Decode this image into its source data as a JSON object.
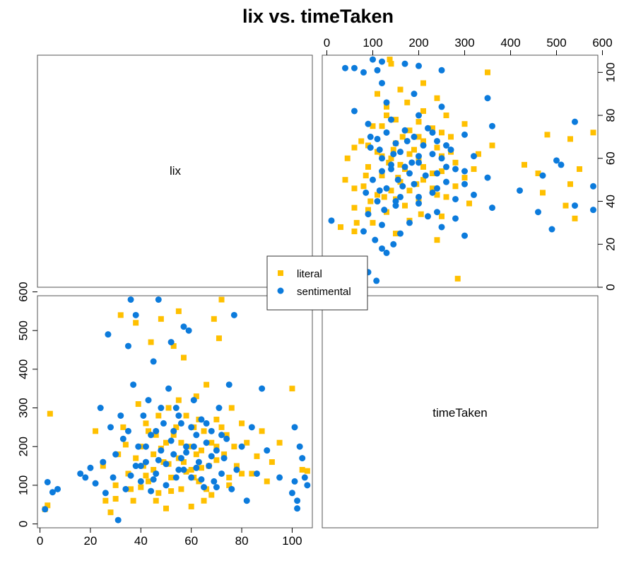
{
  "chart_data": {
    "type": "scatter",
    "title": "lix vs. timeTaken",
    "variables": [
      "lix",
      "timeTaken"
    ],
    "colors": {
      "literal": "#FFC000",
      "sentimental": "#0C7BDC"
    },
    "legend": {
      "position": "center",
      "entries": [
        {
          "name": "literal",
          "marker": "square",
          "color": "#FFC000"
        },
        {
          "name": "sentimental",
          "marker": "circle",
          "color": "#0C7BDC"
        }
      ]
    },
    "panels": [
      {
        "position": "top-left",
        "label": "lix"
      },
      {
        "position": "bottom-right",
        "label": "timeTaken"
      },
      {
        "position": "top-right",
        "x_var": "timeTaken",
        "y_var": "lix",
        "xlim": [
          -10,
          590
        ],
        "ylim": [
          0,
          108
        ],
        "x_ticks": [
          "0",
          "100",
          "200",
          "300",
          "400",
          "500",
          "600"
        ],
        "y_ticks": [
          "0",
          "20",
          "40",
          "60",
          "80",
          "100"
        ]
      },
      {
        "position": "bottom-left",
        "x_var": "lix",
        "y_var": "timeTaken",
        "xlim": [
          -1,
          108
        ],
        "ylim": [
          -10,
          590
        ],
        "x_ticks": [
          "0",
          "20",
          "40",
          "60",
          "80",
          "100"
        ],
        "y_ticks": [
          "0",
          "100",
          "200",
          "300",
          "400",
          "500",
          "600"
        ]
      }
    ],
    "series": [
      {
        "name": "literal",
        "points": [
          [
            2,
            38
          ],
          [
            3,
            48
          ],
          [
            4,
            285
          ],
          [
            22,
            240
          ],
          [
            25,
            150
          ],
          [
            26,
            60
          ],
          [
            28,
            30
          ],
          [
            30,
            100
          ],
          [
            31,
            180
          ],
          [
            32,
            540
          ],
          [
            33,
            250
          ],
          [
            35,
            130
          ],
          [
            36,
            90
          ],
          [
            37,
            60
          ],
          [
            38,
            520
          ],
          [
            39,
            310
          ],
          [
            40,
            200
          ],
          [
            41,
            150
          ],
          [
            42,
            260
          ],
          [
            43,
            110
          ],
          [
            44,
            470
          ],
          [
            45,
            180
          ],
          [
            46,
            230
          ],
          [
            47,
            80
          ],
          [
            48,
            530
          ],
          [
            49,
            160
          ],
          [
            50,
            40
          ],
          [
            50,
            210
          ],
          [
            51,
            300
          ],
          [
            52,
            120
          ],
          [
            53,
            460
          ],
          [
            54,
            250
          ],
          [
            55,
            550
          ],
          [
            55,
            170
          ],
          [
            56,
            90
          ],
          [
            57,
            430
          ],
          [
            58,
            280
          ],
          [
            59,
            200
          ],
          [
            60,
            140
          ],
          [
            61,
            250
          ],
          [
            62,
            330
          ],
          [
            63,
            110
          ],
          [
            64,
            190
          ],
          [
            65,
            240
          ],
          [
            66,
            360
          ],
          [
            67,
            150
          ],
          [
            68,
            210
          ],
          [
            69,
            530
          ],
          [
            70,
            270
          ],
          [
            71,
            480
          ],
          [
            72,
            580
          ],
          [
            73,
            180
          ],
          [
            74,
            230
          ],
          [
            75,
            120
          ],
          [
            76,
            300
          ],
          [
            77,
            200
          ],
          [
            78,
            150
          ],
          [
            80,
            260
          ],
          [
            82,
            210
          ],
          [
            84,
            130
          ],
          [
            86,
            175
          ],
          [
            88,
            240
          ],
          [
            90,
            110
          ],
          [
            92,
            160
          ],
          [
            95,
            210
          ],
          [
            100,
            350
          ],
          [
            104,
            140
          ],
          [
            106,
            137
          ],
          [
            40,
            95
          ],
          [
            45,
            140
          ],
          [
            48,
            195
          ],
          [
            52,
            85
          ],
          [
            57,
            160
          ],
          [
            61,
            120
          ],
          [
            66,
            90
          ],
          [
            70,
            165
          ],
          [
            43,
            240
          ],
          [
            46,
            60
          ],
          [
            53,
            230
          ],
          [
            58,
            135
          ],
          [
            63,
            270
          ],
          [
            38,
            170
          ],
          [
            34,
            205
          ],
          [
            60,
            45
          ],
          [
            65,
            60
          ],
          [
            72,
            250
          ],
          [
            75,
            100
          ],
          [
            80,
            130
          ],
          [
            30,
            65
          ],
          [
            55,
            320
          ],
          [
            62,
            180
          ],
          [
            68,
            75
          ],
          [
            47,
            280
          ],
          [
            51,
            155
          ],
          [
            42,
            125
          ],
          [
            56,
            210
          ],
          [
            64,
            145
          ],
          [
            70,
            200
          ]
        ]
      },
      {
        "name": "sentimental",
        "points": [
          [
            2,
            38
          ],
          [
            3,
            108
          ],
          [
            5,
            82
          ],
          [
            7,
            90
          ],
          [
            16,
            130
          ],
          [
            18,
            120
          ],
          [
            20,
            145
          ],
          [
            22,
            105
          ],
          [
            24,
            300
          ],
          [
            25,
            160
          ],
          [
            26,
            80
          ],
          [
            27,
            490
          ],
          [
            28,
            250
          ],
          [
            29,
            120
          ],
          [
            30,
            180
          ],
          [
            31,
            10
          ],
          [
            32,
            280
          ],
          [
            33,
            220
          ],
          [
            34,
            90
          ],
          [
            35,
            240
          ],
          [
            35,
            460
          ],
          [
            36,
            580
          ],
          [
            37,
            360
          ],
          [
            38,
            150
          ],
          [
            38,
            540
          ],
          [
            39,
            200
          ],
          [
            40,
            110
          ],
          [
            41,
            280
          ],
          [
            42,
            160
          ],
          [
            43,
            320
          ],
          [
            44,
            230
          ],
          [
            45,
            420
          ],
          [
            46,
            130
          ],
          [
            47,
            580
          ],
          [
            48,
            190
          ],
          [
            49,
            260
          ],
          [
            50,
            100
          ],
          [
            51,
            350
          ],
          [
            52,
            470
          ],
          [
            53,
            180
          ],
          [
            54,
            300
          ],
          [
            55,
            140
          ],
          [
            56,
            260
          ],
          [
            57,
            510
          ],
          [
            58,
            200
          ],
          [
            59,
            500
          ],
          [
            60,
            120
          ],
          [
            61,
            320
          ],
          [
            62,
            230
          ],
          [
            63,
            160
          ],
          [
            64,
            270
          ],
          [
            65,
            95
          ],
          [
            66,
            210
          ],
          [
            67,
            150
          ],
          [
            68,
            240
          ],
          [
            69,
            110
          ],
          [
            70,
            190
          ],
          [
            71,
            300
          ],
          [
            72,
            130
          ],
          [
            73,
            170
          ],
          [
            74,
            220
          ],
          [
            75,
            360
          ],
          [
            76,
            90
          ],
          [
            77,
            540
          ],
          [
            78,
            140
          ],
          [
            80,
            200
          ],
          [
            82,
            60
          ],
          [
            84,
            250
          ],
          [
            86,
            130
          ],
          [
            88,
            350
          ],
          [
            90,
            190
          ],
          [
            95,
            120
          ],
          [
            100,
            80
          ],
          [
            101,
            110
          ],
          [
            101,
            250
          ],
          [
            102,
            40
          ],
          [
            102,
            60
          ],
          [
            103,
            200
          ],
          [
            104,
            170
          ],
          [
            105,
            120
          ],
          [
            106,
            100
          ],
          [
            46,
            240
          ],
          [
            50,
            155
          ],
          [
            54,
            120
          ],
          [
            58,
            185
          ],
          [
            62,
            145
          ],
          [
            44,
            85
          ],
          [
            48,
            300
          ],
          [
            52,
            215
          ],
          [
            56,
            170
          ],
          [
            60,
            250
          ],
          [
            64,
            115
          ],
          [
            42,
            200
          ],
          [
            40,
            150
          ],
          [
            66,
            260
          ],
          [
            70,
            95
          ],
          [
            36,
            125
          ],
          [
            47,
            165
          ],
          [
            53,
            240
          ],
          [
            57,
            140
          ],
          [
            61,
            200
          ],
          [
            68,
            175
          ],
          [
            72,
            230
          ],
          [
            45,
            115
          ],
          [
            55,
            280
          ]
        ]
      }
    ]
  }
}
